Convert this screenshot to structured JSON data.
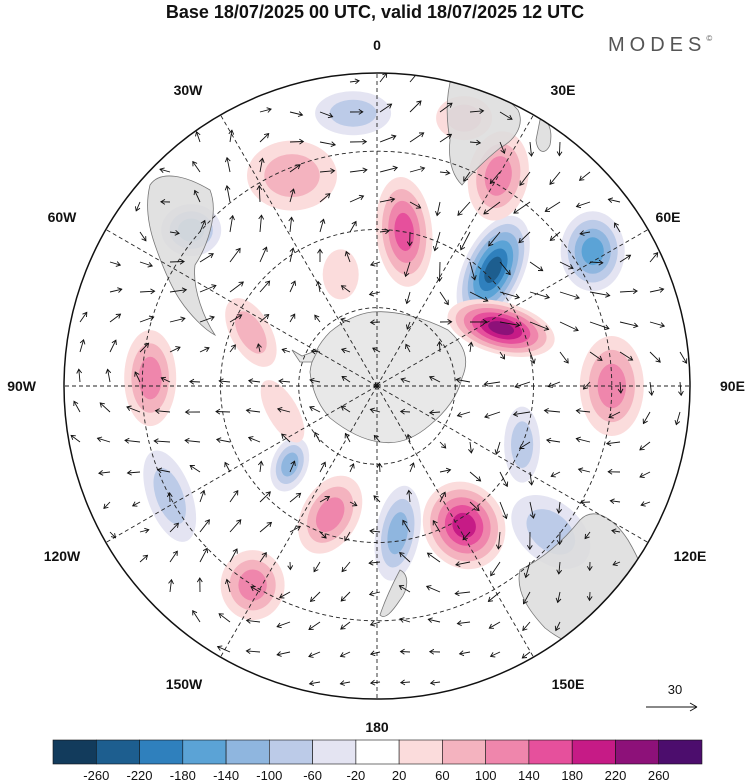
{
  "title": "Base 18/07/2025 00 UTC, valid 18/07/2025 12 UTC",
  "brand": "MODES",
  "brand_mark": "©",
  "projection_labels": {
    "top": "0",
    "top_right": "30E",
    "right_upper": "60E",
    "right": "90E",
    "right_lower": "120E",
    "bottom_right": "150E",
    "bottom": "180",
    "bottom_left": "150W",
    "left_lower": "120W",
    "left": "90W",
    "left_upper": "60W",
    "top_left": "30W"
  },
  "reference_vector": {
    "value": "30"
  },
  "colorbar": {
    "colors": [
      "#123b5c",
      "#1d5e8f",
      "#2f80bd",
      "#5ba3d6",
      "#8fb6df",
      "#bccbe8",
      "#e4e4f2",
      "#ffffff",
      "#fbdcdc",
      "#f4b3bf",
      "#ef86ac",
      "#e6509c",
      "#c61b86",
      "#8d1179",
      "#4c0d6d"
    ],
    "labels": [
      "-260",
      "-220",
      "-180",
      "-140",
      "-100",
      "-60",
      "-20",
      "20",
      "60",
      "100",
      "140",
      "180",
      "220",
      "260"
    ]
  },
  "anomalies": [
    {
      "lon": 10,
      "lat": -50,
      "value": 150,
      "rx": 28,
      "ry": 55,
      "rot": -5
    },
    {
      "lon": 45,
      "lat": -48,
      "value": -230,
      "rx": 30,
      "ry": 58,
      "rot": 25
    },
    {
      "lon": 65,
      "lat": -55,
      "value": 240,
      "rx": 55,
      "ry": 26,
      "rot": 15
    },
    {
      "lon": 30,
      "lat": -28,
      "value": 90,
      "rx": 30,
      "ry": 45,
      "rot": 10
    },
    {
      "lon": 58,
      "lat": -25,
      "value": -130,
      "rx": 32,
      "ry": 40,
      "rot": 0
    },
    {
      "lon": 90,
      "lat": -30,
      "value": 100,
      "rx": 32,
      "ry": 50,
      "rot": 0
    },
    {
      "lon": 112,
      "lat": -50,
      "value": -70,
      "rx": 18,
      "ry": 38,
      "rot": 0
    },
    {
      "lon": 148,
      "lat": -48,
      "value": 190,
      "rx": 40,
      "ry": 45,
      "rot": -30
    },
    {
      "lon": 172,
      "lat": -52,
      "value": -90,
      "rx": 22,
      "ry": 48,
      "rot": 10
    },
    {
      "lon": -160,
      "lat": -55,
      "value": 110,
      "rx": 28,
      "ry": 42,
      "rot": 30
    },
    {
      "lon": -132,
      "lat": -60,
      "value": -100,
      "rx": 18,
      "ry": 28,
      "rot": 20
    },
    {
      "lon": -118,
      "lat": -30,
      "value": -80,
      "rx": 22,
      "ry": 48,
      "rot": -20
    },
    {
      "lon": -148,
      "lat": -30,
      "value": 100,
      "rx": 32,
      "ry": 35,
      "rot": 0
    },
    {
      "lon": -88,
      "lat": -32,
      "value": 90,
      "rx": 26,
      "ry": 48,
      "rot": 0
    },
    {
      "lon": -67,
      "lat": -55,
      "value": 50,
      "rx": 20,
      "ry": 38,
      "rot": -30
    },
    {
      "lon": -50,
      "lat": -28,
      "value": -110,
      "rx": 30,
      "ry": 26,
      "rot": 0
    },
    {
      "lon": -22,
      "lat": -32,
      "value": 80,
      "rx": 45,
      "ry": 35,
      "rot": 0
    },
    {
      "lon": -18,
      "lat": -60,
      "value": 40,
      "rx": 18,
      "ry": 25,
      "rot": 0
    },
    {
      "lon": -5,
      "lat": -20,
      "value": -60,
      "rx": 38,
      "ry": 22,
      "rot": 0
    },
    {
      "lon": 18,
      "lat": -18,
      "value": 60,
      "rx": 28,
      "ry": 22,
      "rot": 0
    },
    {
      "lon": -105,
      "lat": -65,
      "value": 40,
      "rx": 35,
      "ry": 15,
      "rot": 60
    },
    {
      "lon": 130,
      "lat": -32,
      "value": -50,
      "rx": 45,
      "ry": 30,
      "rot": 40
    }
  ]
}
